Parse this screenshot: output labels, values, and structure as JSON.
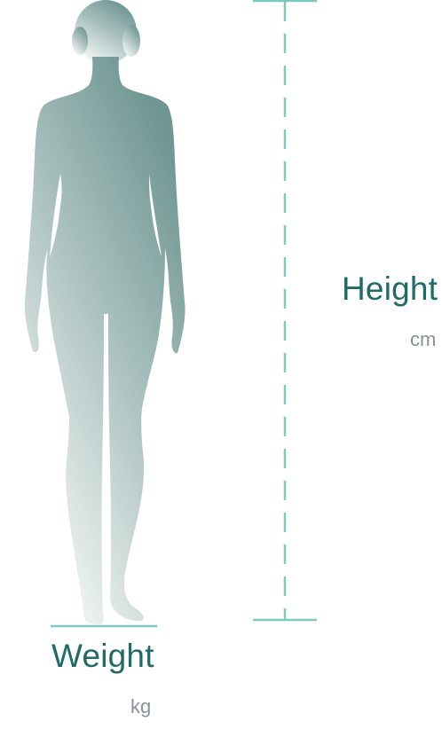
{
  "colors": {
    "label": "#1f6b67",
    "unit": "#8a8f99",
    "line": "#7cc9bd",
    "silhouette_top": "#6f9692",
    "silhouette_bottom": "#f2f5f4"
  },
  "figure": {
    "icon": "female-body-silhouette"
  },
  "weight": {
    "label": "Weight",
    "unit": "kg"
  },
  "height": {
    "label": "Height",
    "unit": "cm"
  }
}
